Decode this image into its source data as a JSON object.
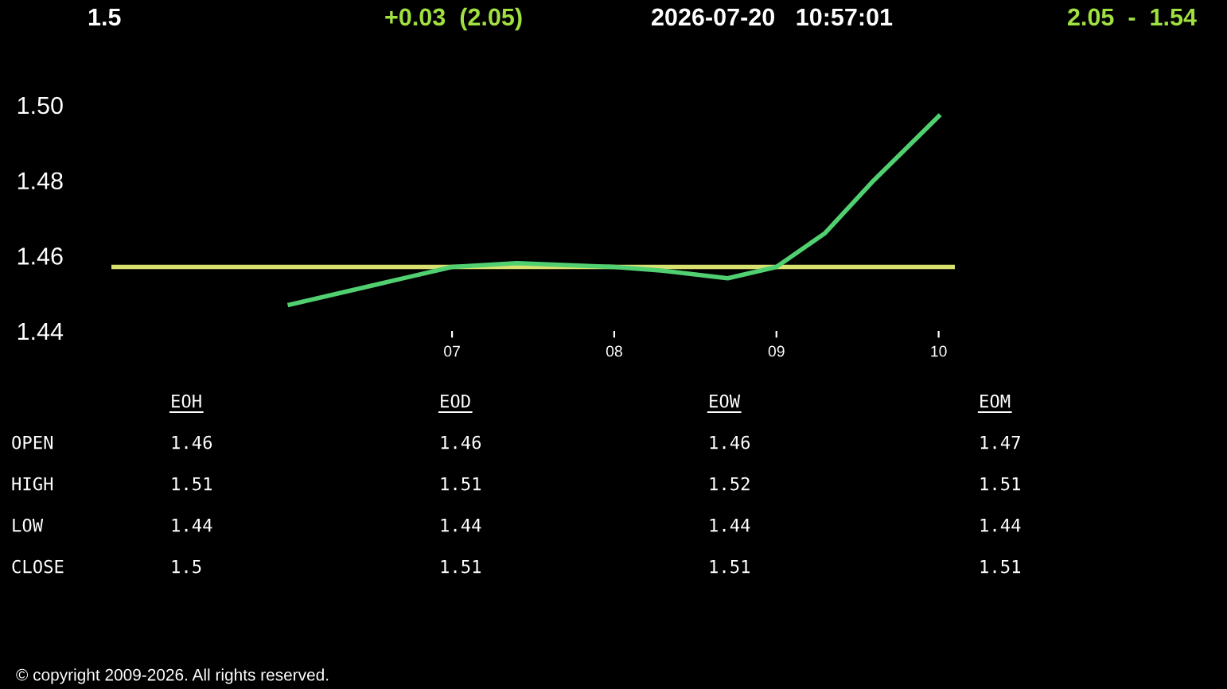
{
  "chart_data": {
    "type": "line",
    "title": "1.5",
    "subtitle": "+0.03  (2.05)",
    "x": [
      6.0,
      6.5,
      7.0,
      7.4,
      8.0,
      8.3,
      8.7,
      9.0,
      9.3,
      9.6,
      10.0
    ],
    "series": [
      {
        "color": "#50d070",
        "values": [
          1.447,
          1.452,
          1.457,
          1.458,
          1.457,
          1.456,
          1.454,
          1.457,
          1.466,
          1.48,
          1.497
        ]
      }
    ],
    "ref_lines": [
      {
        "axis": "y",
        "value": 1.457,
        "color": "#d8e070"
      }
    ],
    "xlim": [
      4.9,
      10.1
    ],
    "ylim": [
      1.44,
      1.5
    ],
    "xticks": [
      {
        "value": 7,
        "label": "07"
      },
      {
        "value": 8,
        "label": "08"
      },
      {
        "value": 9,
        "label": "09"
      },
      {
        "value": 10,
        "label": "10"
      }
    ],
    "yticks": [
      {
        "value": 1.44,
        "label": "1.44"
      },
      {
        "value": 1.46,
        "label": "1.46"
      },
      {
        "value": 1.48,
        "label": "1.48"
      },
      {
        "value": 1.5,
        "label": "1.50"
      }
    ],
    "grid": false,
    "legend": false,
    "marker": "none",
    "line_style": "solid",
    "annotations": [
      "2026-07-20   10:57:01",
      "2.05  -  1.54",
      "EOH",
      "EOD",
      "EOW",
      "EOM",
      "OPEN",
      "1.46",
      "1.46",
      "1.46",
      "1.47",
      "HIGH",
      "1.51",
      "1.51",
      "1.52",
      "1.51",
      "LOW",
      "1.44",
      "1.44",
      "1.44",
      "1.44",
      "CLOSE",
      "1.5",
      "1.51",
      "1.51",
      "1.51",
      "© copyright 2009-2026. All rights reserved."
    ]
  }
}
